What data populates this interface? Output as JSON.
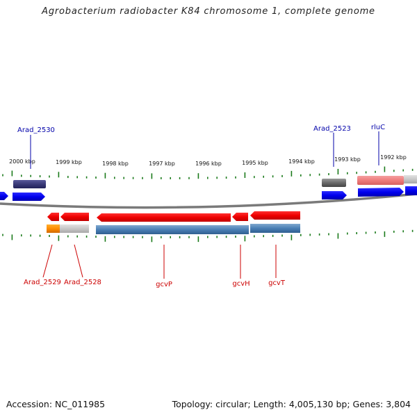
{
  "title": "Agrobacterium radiobacter K84 chromosome 1, complete genome",
  "footer": {
    "accession": "Accession: NC_011985",
    "summary": "Topology: circular; Length: 4,005,130 bp; Genes: 3,804"
  },
  "colors": {
    "plus_strand_gene": "#0000ee",
    "minus_strand_gene": "#ee0000",
    "plus_label": "#0000aa",
    "minus_label": "#cc0000",
    "tick": "#1a7a1a",
    "backbone": "#7a7a7a"
  },
  "ruler": {
    "tick_labels": [
      "2000 kbp",
      "1999 kbp",
      "1998 kbp",
      "1997 kbp",
      "1996 kbp",
      "1995 kbp",
      "1994 kbp",
      "1993 kbp",
      "1992 kbp"
    ]
  },
  "annotations": {
    "top": [
      "Arad_2530",
      "Arad_2523",
      "rluC"
    ],
    "bottom": [
      "Arad_2529",
      "Arad_2528",
      "gcvP",
      "gcvH",
      "gcvT"
    ]
  }
}
